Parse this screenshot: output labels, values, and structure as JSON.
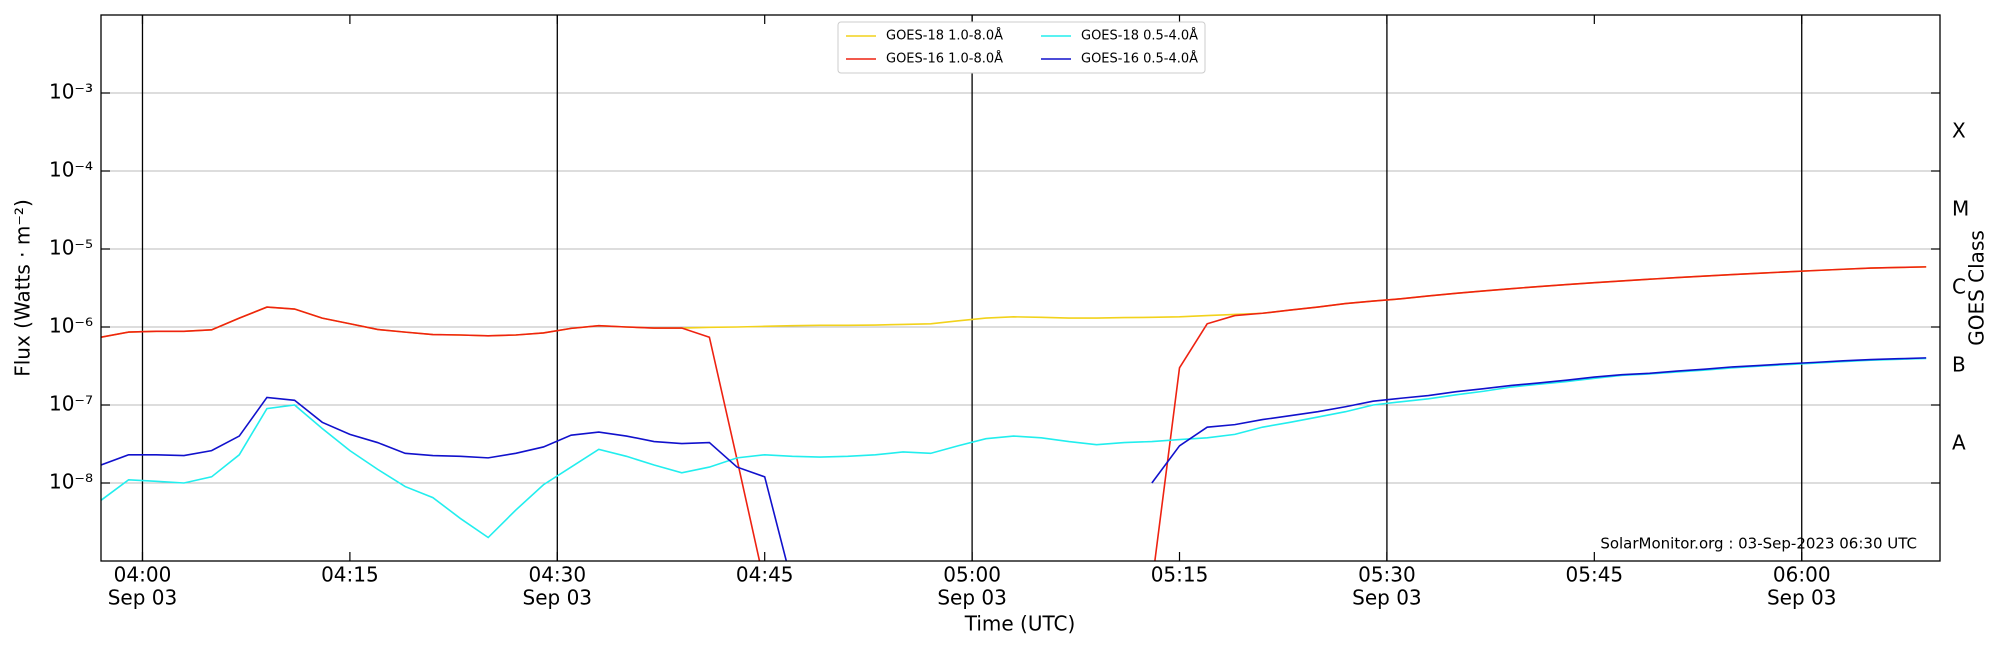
{
  "chart_data": {
    "type": "line",
    "xlabel": "Time (UTC)",
    "ylabel": "Flux (Watts · m⁻²)",
    "y2label": "GOES Class",
    "annotation": "SolarMonitor.org : 03-Sep-2023 06:30 UTC",
    "log_scale": true,
    "grid": true,
    "legend_corner": "upper center",
    "xlim": [
      "03:57",
      "06:10"
    ],
    "ylim": [
      1e-09,
      0.01
    ],
    "yticks": [
      {
        "value": 1e-08,
        "label": "10⁻⁸"
      },
      {
        "value": 1e-07,
        "label": "10⁻⁷"
      },
      {
        "value": 1e-06,
        "label": "10⁻⁶"
      },
      {
        "value": 1e-05,
        "label": "10⁻⁵"
      },
      {
        "value": 0.0001,
        "label": "10⁻⁴"
      },
      {
        "value": 0.001,
        "label": "10⁻³"
      }
    ],
    "y2lim": [
      1e-09,
      0.01
    ],
    "y2ticks": [
      {
        "value": 3.16e-08,
        "label": "A"
      },
      {
        "value": 3.16e-07,
        "label": "B"
      },
      {
        "value": 3.16e-06,
        "label": "C"
      },
      {
        "value": 3.16e-05,
        "label": "M"
      },
      {
        "value": 0.000316,
        "label": "X"
      }
    ],
    "xticks": [
      {
        "value": "04:00",
        "label": [
          "04:00",
          "Sep 03"
        ]
      },
      "04:15",
      {
        "value": "04:30",
        "label": [
          "04:30",
          "Sep 03"
        ]
      },
      "04:45",
      {
        "value": "05:00",
        "label": [
          "05:00",
          "Sep 03"
        ]
      },
      "05:15",
      {
        "value": "05:30",
        "label": [
          "05:30",
          "Sep 03"
        ]
      },
      "05:45",
      {
        "value": "06:00",
        "label": [
          "06:00",
          "Sep 03"
        ]
      }
    ],
    "vlines": [
      "04:00",
      "04:30",
      "05:00",
      "05:30",
      "06:00"
    ],
    "x": [
      "03:57",
      "03:59",
      "04:01",
      "04:03",
      "04:05",
      "04:07",
      "04:09",
      "04:11",
      "04:13",
      "04:15",
      "04:17",
      "04:19",
      "04:21",
      "04:23",
      "04:25",
      "04:27",
      "04:29",
      "04:31",
      "04:33",
      "04:35",
      "04:37",
      "04:39",
      "04:41",
      "04:43",
      "04:45",
      "04:47",
      "04:49",
      "04:51",
      "04:53",
      "04:55",
      "04:57",
      "04:59",
      "05:01",
      "05:03",
      "05:05",
      "05:07",
      "05:09",
      "05:11",
      "05:13",
      "05:15",
      "05:17",
      "05:19",
      "05:21",
      "05:23",
      "05:25",
      "05:27",
      "05:29",
      "05:31",
      "05:33",
      "05:35",
      "05:37",
      "05:39",
      "05:41",
      "05:43",
      "05:45",
      "05:47",
      "05:49",
      "05:51",
      "05:53",
      "05:55",
      "05:57",
      "05:59",
      "06:01",
      "06:03",
      "06:05",
      "06:07",
      "06:09"
    ],
    "series": [
      {
        "name": "GOES-18 1.0-8.0Å",
        "color": "#f2d21b",
        "values": [
          7.4e-07,
          8.6e-07,
          8.8e-07,
          8.8e-07,
          9.2e-07,
          1.3e-06,
          1.8e-06,
          1.7e-06,
          1.3e-06,
          1.1e-06,
          9.3e-07,
          8.6e-07,
          8e-07,
          7.9e-07,
          7.7e-07,
          7.9e-07,
          8.4e-07,
          9.6e-07,
          1.04e-06,
          1e-06,
          9.7e-07,
          9.7e-07,
          9.9e-07,
          1e-06,
          1.02e-06,
          1.04e-06,
          1.05e-06,
          1.05e-06,
          1.06e-06,
          1.08e-06,
          1.1e-06,
          1.2e-06,
          1.3e-06,
          1.35e-06,
          1.33e-06,
          1.3e-06,
          1.3e-06,
          1.32e-06,
          1.33e-06,
          1.35e-06,
          1.4e-06,
          1.45e-06,
          1.5e-06,
          1.65e-06,
          1.8e-06,
          2e-06,
          2.15e-06,
          2.3e-06,
          2.5e-06,
          2.7e-06,
          2.9e-06,
          3.1e-06,
          3.3e-06,
          3.5e-06,
          3.7e-06,
          3.9e-06,
          4.1e-06,
          4.3e-06,
          4.5e-06,
          4.7e-06,
          4.9e-06,
          5.1e-06,
          5.3e-06,
          5.5e-06,
          5.7e-06,
          5.8e-06,
          5.9e-06
        ]
      },
      {
        "name": "GOES-16 1.0-8.0Å",
        "color": "#ee2211",
        "values": [
          7.4e-07,
          8.6e-07,
          8.8e-07,
          8.8e-07,
          9.2e-07,
          1.3e-06,
          1.8e-06,
          1.7e-06,
          1.3e-06,
          1.1e-06,
          9.3e-07,
          8.6e-07,
          8e-07,
          7.9e-07,
          7.7e-07,
          7.9e-07,
          8.4e-07,
          9.6e-07,
          1.04e-06,
          1e-06,
          9.7e-07,
          9.7e-07,
          7.4e-07,
          2e-08,
          5e-10,
          null,
          null,
          null,
          null,
          null,
          null,
          null,
          null,
          null,
          null,
          null,
          null,
          null,
          5e-10,
          3e-07,
          1.1e-06,
          1.4e-06,
          1.5e-06,
          1.65e-06,
          1.8e-06,
          2e-06,
          2.15e-06,
          2.3e-06,
          2.5e-06,
          2.7e-06,
          2.9e-06,
          3.1e-06,
          3.3e-06,
          3.5e-06,
          3.7e-06,
          3.9e-06,
          4.1e-06,
          4.3e-06,
          4.5e-06,
          4.7e-06,
          4.9e-06,
          5.1e-06,
          5.3e-06,
          5.5e-06,
          5.7e-06,
          5.8e-06,
          5.9e-06
        ]
      },
      {
        "name": "GOES-18 0.5-4.0Å",
        "color": "#22eeee",
        "values": [
          6e-09,
          1.1e-08,
          1.05e-08,
          1e-08,
          1.2e-08,
          2.3e-08,
          9e-08,
          1e-07,
          5e-08,
          2.6e-08,
          1.5e-08,
          9e-09,
          6.5e-09,
          3.5e-09,
          2e-09,
          4.5e-09,
          9.5e-09,
          1.6e-08,
          2.7e-08,
          2.2e-08,
          1.7e-08,
          1.35e-08,
          1.6e-08,
          2.1e-08,
          2.3e-08,
          2.2e-08,
          2.15e-08,
          2.2e-08,
          2.3e-08,
          2.5e-08,
          2.4e-08,
          3e-08,
          3.7e-08,
          4e-08,
          3.8e-08,
          3.4e-08,
          3.1e-08,
          3.3e-08,
          3.4e-08,
          3.6e-08,
          3.8e-08,
          4.2e-08,
          5.2e-08,
          6e-08,
          7e-08,
          8.2e-08,
          1e-07,
          1.1e-07,
          1.2e-07,
          1.35e-07,
          1.5e-07,
          1.7e-07,
          1.85e-07,
          2e-07,
          2.2e-07,
          2.4e-07,
          2.5e-07,
          2.65e-07,
          2.8e-07,
          3e-07,
          3.15e-07,
          3.3e-07,
          3.45e-07,
          3.6e-07,
          3.75e-07,
          3.85e-07,
          3.95e-07
        ]
      },
      {
        "name": "GOES-16 0.5-4.0Å",
        "color": "#1111cc",
        "values": [
          1.7e-08,
          2.3e-08,
          2.3e-08,
          2.25e-08,
          2.6e-08,
          4e-08,
          1.25e-07,
          1.15e-07,
          6e-08,
          4.2e-08,
          3.3e-08,
          2.4e-08,
          2.25e-08,
          2.2e-08,
          2.1e-08,
          2.4e-08,
          2.9e-08,
          4.1e-08,
          4.5e-08,
          4e-08,
          3.4e-08,
          3.2e-08,
          3.3e-08,
          1.6e-08,
          1.2e-08,
          5e-10,
          null,
          null,
          null,
          null,
          null,
          null,
          null,
          null,
          null,
          null,
          null,
          null,
          1e-08,
          3e-08,
          5.2e-08,
          5.6e-08,
          6.5e-08,
          7.3e-08,
          8.2e-08,
          9.5e-08,
          1.12e-07,
          1.22e-07,
          1.32e-07,
          1.48e-07,
          1.62e-07,
          1.78e-07,
          1.92e-07,
          2.08e-07,
          2.28e-07,
          2.45e-07,
          2.55e-07,
          2.72e-07,
          2.88e-07,
          3.08e-07,
          3.22e-07,
          3.38e-07,
          3.52e-07,
          3.68e-07,
          3.82e-07,
          3.92e-07,
          4.02e-07
        ]
      }
    ]
  }
}
